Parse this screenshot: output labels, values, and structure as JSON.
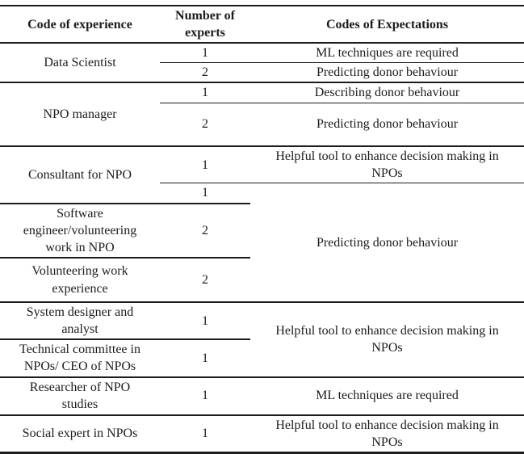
{
  "table": {
    "header": {
      "experience": "Code of experience",
      "experts": "Number of\nexperts",
      "expectations": "Codes of Expectations"
    },
    "rows": [
      {
        "experience": "Data Scientist",
        "experts": "1",
        "expectation": "ML techniques are required"
      },
      {
        "experts": "2",
        "expectation": "Predicting donor behaviour"
      },
      {
        "experience": "NPO manager",
        "experts": "1",
        "expectation": "Describing donor behaviour"
      },
      {
        "experts": "2",
        "expectation": "Predicting donor behaviour"
      },
      {
        "experience": "Consultant for NPO",
        "experts": "1",
        "expectation": "Helpful tool to enhance decision making in\nNPOs"
      },
      {
        "experts": "1",
        "expectation": "Predicting donor behaviour"
      },
      {
        "experience": "Software\nengineer/volunteering\nwork in NPO",
        "experts": "2"
      },
      {
        "experience": "Volunteering work\nexperience",
        "experts": "2"
      },
      {
        "experience": "System designer and\nanalyst",
        "experts": "1",
        "expectation": "Helpful tool to enhance decision making in\nNPOs"
      },
      {
        "experience": "Technical committee in\nNPOs/ CEO of NPOs",
        "experts": "1"
      },
      {
        "experience": "Researcher of NPO\nstudies",
        "experts": "1",
        "expectation": "ML techniques are required"
      },
      {
        "experience": "Social expert in NPOs",
        "experts": "1",
        "expectation": "Helpful tool to enhance decision making in\nNPOs"
      }
    ],
    "colors": {
      "text": "#1c1c1c",
      "rule": "#1c1c1c",
      "background": "#ffffff"
    }
  }
}
